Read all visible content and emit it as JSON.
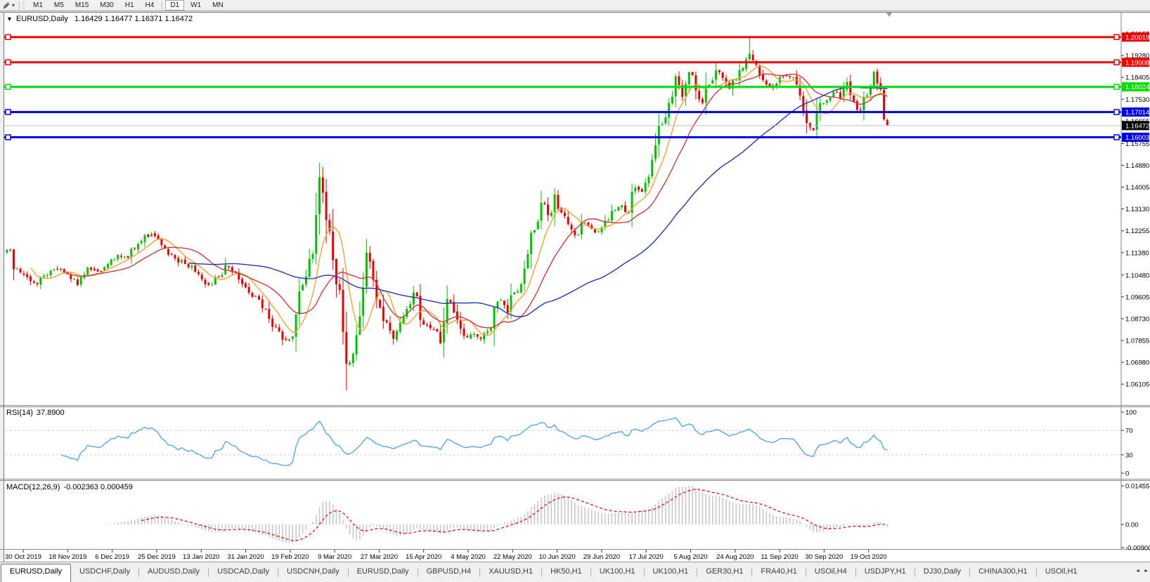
{
  "window": {
    "dropdown_icon": "▼",
    "symbol_period": "EURUSD,Daily",
    "ohlc_text": "1.16429 1.16477 1.16371 1.16472"
  },
  "toolbar": {
    "cursor_icon": "cursor-pen-tool",
    "caret": "▾",
    "timeframes": [
      "M1",
      "M5",
      "M15",
      "M30",
      "H1",
      "H4",
      "D1",
      "W1",
      "MN"
    ],
    "active": "D1",
    "separators_after": [
      "H4"
    ]
  },
  "indicators": {
    "rsi": {
      "label": "RSI(14)",
      "value": "37.8900"
    },
    "macd": {
      "label": "MACD(12,26,9)",
      "values": "-0.002363 0.000459"
    }
  },
  "price_axis": {
    "ticks": [
      "1.20155",
      "1.19280",
      "1.18405",
      "1.17530",
      "1.16655",
      "1.15755",
      "1.14880",
      "1.14005",
      "1.13130",
      "1.12255",
      "1.11380",
      "1.10480",
      "1.09605",
      "1.08730",
      "1.07855",
      "1.06980",
      "1.06105"
    ]
  },
  "rsi_axis": {
    "ticks": [
      "100",
      "70",
      "30",
      "0"
    ],
    "values": [
      100,
      70,
      30,
      0
    ]
  },
  "macd_axis": {
    "ticks": [
      "0.014556",
      "0.00",
      "-0.00900"
    ],
    "values": [
      0.014556,
      0,
      -0.009
    ]
  },
  "hlines": [
    {
      "value": "1.20019",
      "color": "#F20000"
    },
    {
      "value": "1.19008",
      "color": "#F20000"
    },
    {
      "value": "1.18024",
      "color": "#00DE00"
    },
    {
      "value": "1.17014",
      "color": "#0000E8"
    },
    {
      "value": "1.16003",
      "color": "#0000E8"
    }
  ],
  "current_price": {
    "value": "1.16472",
    "line_color": "#C0C0C0",
    "badge_color": "#000000"
  },
  "date_axis": {
    "labels": [
      "30 Oct 2019",
      "18 Nov 2019",
      "6 Dec 2019",
      "25 Dec 2019",
      "13 Jan 2020",
      "31 Jan 2020",
      "19 Feb 2020",
      "9 Mar 2020",
      "27 Mar 2020",
      "15 Apr 2020",
      "4 May 2020",
      "22 May 2020",
      "10 Jun 2020",
      "29 Jun 2020",
      "17 Jul 2020",
      "5 Aug 2020",
      "24 Aug 2020",
      "11 Sep 2020",
      "30 Sep 2020",
      "19 Oct 2020"
    ]
  },
  "tab_bar": {
    "scroll_left_icon": "◄",
    "scroll_right_icon": "►",
    "tabs": [
      {
        "label": "EURUSD,Daily",
        "active": true
      },
      {
        "label": "USDCHF,Daily",
        "active": false
      },
      {
        "label": "AUDUSD,Daily",
        "active": false
      },
      {
        "label": "USDCAD,Daily",
        "active": false
      },
      {
        "label": "USDCNH,Daily",
        "active": false
      },
      {
        "label": "EURUSD,Daily",
        "active": false
      },
      {
        "label": "GBPUSD,H4",
        "active": false
      },
      {
        "label": "XAUUSD,H1",
        "active": false
      },
      {
        "label": "HK50,H1",
        "active": false
      },
      {
        "label": "UK100,H1",
        "active": false
      },
      {
        "label": "UK100,H1",
        "active": false
      },
      {
        "label": "GER30,H1",
        "active": false
      },
      {
        "label": "FRA40,H1",
        "active": false
      },
      {
        "label": "USOil,H4",
        "active": false
      },
      {
        "label": "USDJPY,H1",
        "active": false
      },
      {
        "label": "DJ30,Daily",
        "active": false
      },
      {
        "label": "CHINA300,H1",
        "active": false
      },
      {
        "label": "USOil,H1",
        "active": false
      }
    ]
  },
  "chart_data": {
    "type": "candlestick",
    "symbol": "EURUSD",
    "timeframe": "Daily",
    "visible_range": {
      "first_date": "30 Oct 2019",
      "last_date": "19 Oct 2020"
    },
    "last_ohlc": {
      "open": "1.16429",
      "high": "1.16477",
      "low": "1.16371",
      "close": "1.16472"
    },
    "num_candles": 263,
    "close_anchors": [
      [
        0,
        1.115
      ],
      [
        3,
        1.1072
      ],
      [
        6,
        1.104
      ],
      [
        9,
        1.1012
      ],
      [
        12,
        1.1048
      ],
      [
        15,
        1.1072
      ],
      [
        18,
        1.1052
      ],
      [
        21,
        1.1008
      ],
      [
        24,
        1.1078
      ],
      [
        27,
        1.1062
      ],
      [
        30,
        1.1092
      ],
      [
        33,
        1.1128
      ],
      [
        36,
        1.1118
      ],
      [
        39,
        1.1172
      ],
      [
        43,
        1.1212
      ],
      [
        46,
        1.1168
      ],
      [
        49,
        1.1128
      ],
      [
        53,
        1.1092
      ],
      [
        57,
        1.1052
      ],
      [
        60,
        1.1008
      ],
      [
        63,
        1.1042
      ],
      [
        65,
        1.1088
      ],
      [
        68,
        1.1058
      ],
      [
        71,
        1.0998
      ],
      [
        74,
        1.0962
      ],
      [
        77,
        1.0912
      ],
      [
        80,
        1.0842
      ],
      [
        83,
        1.0788
      ],
      [
        85,
        1.0802
      ],
      [
        87,
        1.0982
      ],
      [
        89,
        1.1042
      ],
      [
        91,
        1.1132
      ],
      [
        93,
        1.144
      ],
      [
        95,
        1.1268
      ],
      [
        97,
        1.1108
      ],
      [
        99,
        1.0988
      ],
      [
        101,
        1.0692
      ],
      [
        103,
        1.0732
      ],
      [
        105,
        1.0882
      ],
      [
        107,
        1.1138
      ],
      [
        109,
        1.1028
      ],
      [
        111,
        1.0918
      ],
      [
        113,
        1.0858
      ],
      [
        115,
        1.0792
      ],
      [
        117,
        1.0858
      ],
      [
        119,
        1.0912
      ],
      [
        121,
        1.0978
      ],
      [
        123,
        1.0868
      ],
      [
        125,
        1.0848
      ],
      [
        127,
        1.0828
      ],
      [
        129,
        1.0775
      ],
      [
        131,
        1.0952
      ],
      [
        133,
        1.0898
      ],
      [
        135,
        1.0832
      ],
      [
        137,
        1.0798
      ],
      [
        139,
        1.0812
      ],
      [
        141,
        1.0792
      ],
      [
        143,
        1.0822
      ],
      [
        145,
        1.0918
      ],
      [
        147,
        1.0948
      ],
      [
        149,
        1.0898
      ],
      [
        151,
        1.0978
      ],
      [
        153,
        1.1012
      ],
      [
        155,
        1.1132
      ],
      [
        157,
        1.1228
      ],
      [
        159,
        1.1338
      ],
      [
        161,
        1.1288
      ],
      [
        163,
        1.1372
      ],
      [
        165,
        1.1298
      ],
      [
        167,
        1.1252
      ],
      [
        169,
        1.1208
      ],
      [
        171,
        1.1258
      ],
      [
        173,
        1.1248
      ],
      [
        175,
        1.1218
      ],
      [
        177,
        1.1238
      ],
      [
        179,
        1.1268
      ],
      [
        181,
        1.1308
      ],
      [
        183,
        1.1328
      ],
      [
        185,
        1.1298
      ],
      [
        187,
        1.1398
      ],
      [
        189,
        1.1382
      ],
      [
        191,
        1.1442
      ],
      [
        193,
        1.1568
      ],
      [
        195,
        1.1652
      ],
      [
        197,
        1.1738
      ],
      [
        199,
        1.1845
      ],
      [
        201,
        1.1762
      ],
      [
        203,
        1.1862
      ],
      [
        205,
        1.1788
      ],
      [
        207,
        1.1738
      ],
      [
        209,
        1.1812
      ],
      [
        211,
        1.1868
      ],
      [
        213,
        1.1838
      ],
      [
        215,
        1.1795
      ],
      [
        217,
        1.1832
      ],
      [
        219,
        1.1878
      ],
      [
        221,
        1.1935
      ],
      [
        222,
        1.1908
      ],
      [
        224,
        1.1848
      ],
      [
        226,
        1.1812
      ],
      [
        228,
        1.1798
      ],
      [
        230,
        1.1842
      ],
      [
        232,
        1.1845
      ],
      [
        234,
        1.1842
      ],
      [
        236,
        1.1768
      ],
      [
        238,
        1.1658
      ],
      [
        240,
        1.1628
      ],
      [
        242,
        1.1738
      ],
      [
        244,
        1.1748
      ],
      [
        246,
        1.1782
      ],
      [
        248,
        1.1758
      ],
      [
        250,
        1.1822
      ],
      [
        252,
        1.1742
      ],
      [
        254,
        1.1708
      ],
      [
        256,
        1.1768
      ],
      [
        258,
        1.1862
      ],
      [
        260,
        1.1792
      ],
      [
        261,
        1.1672
      ],
      [
        262,
        1.1647
      ]
    ],
    "high_overrides": [
      [
        93,
        1.1498
      ],
      [
        221,
        1.2002
      ]
    ],
    "low_overrides": [
      [
        101,
        1.0585
      ]
    ],
    "up_color": "#00C400",
    "down_color": "#EA0000",
    "moving_averages": [
      {
        "period": 8,
        "color": "#FF9E2C"
      },
      {
        "period": 18,
        "color": "#CE3A3A"
      },
      {
        "period": 55,
        "color": "#2136B0"
      }
    ],
    "rsi": {
      "period": 14,
      "color": "#4BA3DF",
      "last_value": "37.8900",
      "levels": [
        70,
        30
      ]
    },
    "macd": {
      "fast": 12,
      "slow": 26,
      "signal": 9,
      "histogram_color": "#C8C8C8",
      "signal_color": "#E10000",
      "last_values": "-0.002363 0.000459"
    }
  }
}
